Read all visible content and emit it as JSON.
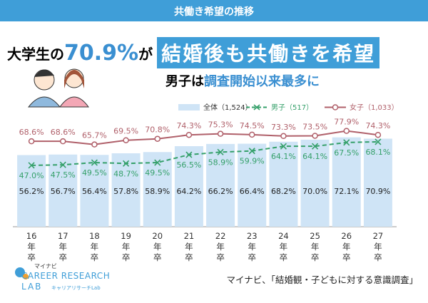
{
  "header": {
    "banner": "共働き希望の推移",
    "headline": {
      "part1": "大学生の",
      "highlight": "70.9%",
      "part2": "が",
      "boxed": "結婚後も共働きを希望"
    },
    "subheadline": {
      "part1": "男子は",
      "highlight": "調査開始以来最多に"
    }
  },
  "chart_data": {
    "type": "bar_line",
    "categories": [
      "16年卒",
      "17年卒",
      "18年卒",
      "19年卒",
      "20年卒",
      "21年卒",
      "22年卒",
      "23年卒",
      "24年卒",
      "25年卒",
      "26年卒",
      "27年卒"
    ],
    "ylim": [
      -8,
      100
    ],
    "series": [
      {
        "name": "全体（1,524）",
        "type": "bar",
        "color": "#cfe4f6",
        "values": [
          56.2,
          56.7,
          56.4,
          57.8,
          58.9,
          64.2,
          66.2,
          66.4,
          68.2,
          70.0,
          72.1,
          70.9
        ],
        "value_labels": [
          "56.2%",
          "56.7%",
          "56.4%",
          "57.8%",
          "58.9%",
          "64.2%",
          "66.2%",
          "66.4%",
          "68.2%",
          "70.0%",
          "72.1%",
          "70.9%"
        ]
      },
      {
        "name": "男子（517）",
        "type": "line",
        "color": "#35a06a",
        "values": [
          47.0,
          47.5,
          49.5,
          48.7,
          49.5,
          56.5,
          58.9,
          59.9,
          64.1,
          64.1,
          67.5,
          68.1
        ],
        "value_labels": [
          "47.0%",
          "47.5%",
          "49.5%",
          "48.7%",
          "49.5%",
          "56.5%",
          "58.9%",
          "59.9%",
          "64.1%",
          "64.1%",
          "67.5%",
          "68.1%"
        ]
      },
      {
        "name": "女子（1,033）",
        "type": "line",
        "color": "#b0606a",
        "values": [
          68.6,
          68.6,
          65.7,
          69.5,
          70.8,
          74.3,
          75.3,
          74.5,
          73.3,
          73.5,
          77.9,
          74.3
        ],
        "value_labels": [
          "68.6%",
          "68.6%",
          "65.7%",
          "69.5%",
          "70.8%",
          "74.3%",
          "75.3%",
          "74.5%",
          "73.3%",
          "73.5%",
          "77.9%",
          "74.3%"
        ]
      }
    ]
  },
  "footer": {
    "logo_top": "マイナビ",
    "logo_main": "CAREER RESEARCH",
    "logo_lab": "LAB",
    "logo_sub": "キャリアリサーチLab",
    "source": "マイナビ、「結婚観・子どもに対する意識調査」"
  }
}
